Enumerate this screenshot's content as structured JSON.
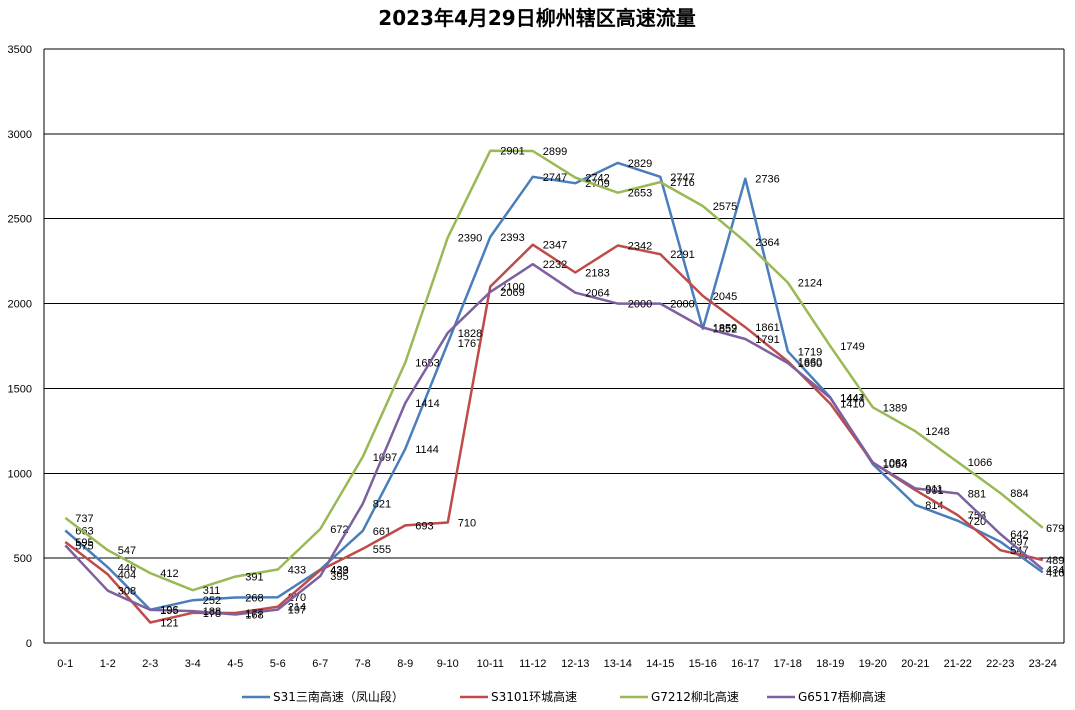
{
  "chart_data": {
    "type": "line",
    "title": "2023年4月29日柳州辖区高速流量",
    "xlabel": "",
    "ylabel": "",
    "ylim": [
      0,
      3500
    ],
    "yticks": [
      0,
      500,
      1000,
      1500,
      2000,
      2500,
      3000,
      3500
    ],
    "grid": true,
    "legend_position": "bottom",
    "categories": [
      "0-1",
      "1-2",
      "2-3",
      "3-4",
      "4-5",
      "5-6",
      "6-7",
      "7-8",
      "8-9",
      "9-10",
      "10-11",
      "11-12",
      "12-13",
      "13-14",
      "14-15",
      "15-16",
      "16-17",
      "17-18",
      "18-19",
      "19-20",
      "20-21",
      "21-22",
      "22-23",
      "23-24"
    ],
    "series": [
      {
        "name": "S31三南高速（凤山段）",
        "color": "#4a7ebb",
        "values": [
          663,
          446,
          196,
          252,
          268,
          270,
          433,
          661,
          1144,
          1767,
          2393,
          2747,
          2709,
          2829,
          2747,
          1852,
          2736,
          1719,
          1447,
          1054,
          814,
          720,
          597,
          416
        ]
      },
      {
        "name": "S3101环城高速",
        "color": "#be4b48",
        "values": [
          595,
          404,
          121,
          178,
          177,
          214,
          429,
          555,
          693,
          710,
          2100,
          2347,
          2183,
          2342,
          2291,
          2045,
          1861,
          1660,
          1410,
          1063,
          901,
          753,
          547,
          489
        ]
      },
      {
        "name": "G7212柳北高速",
        "color": "#98b954",
        "values": [
          737,
          547,
          412,
          311,
          391,
          433,
          672,
          1097,
          1653,
          2390,
          2901,
          2899,
          2742,
          2653,
          2716,
          2575,
          2364,
          2124,
          1749,
          1389,
          1248,
          1066,
          884,
          679
        ]
      },
      {
        "name": "G6517梧柳高速",
        "color": "#7d60a0",
        "values": [
          575,
          308,
          195,
          188,
          168,
          197,
          395,
          821,
          1414,
          1828,
          2069,
          2232,
          2064,
          2000,
          2000,
          1859,
          1791,
          1650,
          1444,
          1063,
          911,
          881,
          642,
          434
        ]
      }
    ]
  }
}
